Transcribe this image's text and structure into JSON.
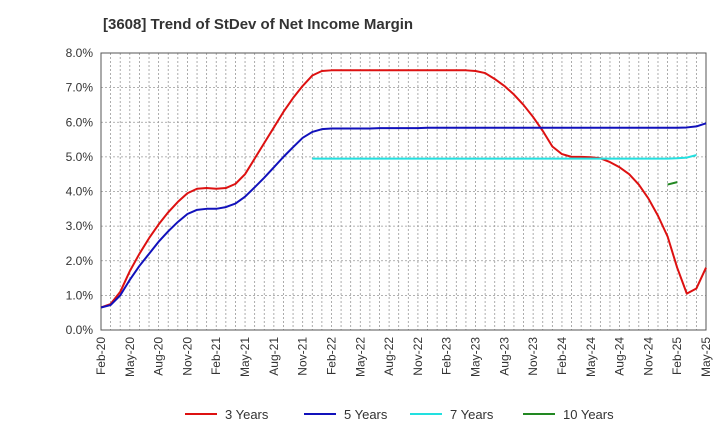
{
  "chart_data": {
    "type": "line",
    "title": "[3608]  Trend of StDev of Net Income Margin",
    "xlabel": "",
    "ylabel": "",
    "ylim": [
      0,
      8
    ],
    "yticks": [
      0,
      1,
      2,
      3,
      4,
      5,
      6,
      7,
      8
    ],
    "ytick_labels": [
      "0.0%",
      "1.0%",
      "2.0%",
      "3.0%",
      "4.0%",
      "5.0%",
      "6.0%",
      "7.0%",
      "8.0%"
    ],
    "x_start": "2020-02",
    "x_end": "2025-05",
    "xtick_labels": [
      "Feb-20",
      "May-20",
      "Aug-20",
      "Nov-20",
      "Feb-21",
      "May-21",
      "Aug-21",
      "Nov-21",
      "Feb-22",
      "May-22",
      "Aug-22",
      "Nov-22",
      "Feb-23",
      "May-23",
      "Aug-23",
      "Nov-23",
      "Feb-24",
      "May-24",
      "Aug-24",
      "Nov-24",
      "Feb-25",
      "May-25"
    ],
    "grid": true,
    "legend_position": "bottom",
    "series": [
      {
        "name": "3 Years",
        "color": "#dd1111",
        "start": "2020-02",
        "values": [
          0.65,
          0.75,
          1.1,
          1.7,
          2.2,
          2.65,
          3.05,
          3.4,
          3.7,
          3.95,
          4.08,
          4.1,
          4.08,
          4.1,
          4.22,
          4.5,
          4.95,
          5.4,
          5.85,
          6.3,
          6.7,
          7.05,
          7.35,
          7.48,
          7.5,
          7.5,
          7.5,
          7.5,
          7.5,
          7.5,
          7.5,
          7.5,
          7.5,
          7.5,
          7.5,
          7.5,
          7.5,
          7.5,
          7.5,
          7.48,
          7.42,
          7.25,
          7.05,
          6.8,
          6.5,
          6.15,
          5.75,
          5.3,
          5.08,
          5.0,
          5.0,
          4.99,
          4.96,
          4.85,
          4.7,
          4.5,
          4.2,
          3.8,
          3.3,
          2.7,
          1.8,
          1.05,
          1.2,
          1.8
        ]
      },
      {
        "name": "5 Years",
        "color": "#1111bb",
        "start": "2020-02",
        "values": [
          0.65,
          0.72,
          1.0,
          1.45,
          1.85,
          2.2,
          2.55,
          2.85,
          3.12,
          3.35,
          3.47,
          3.5,
          3.5,
          3.55,
          3.65,
          3.85,
          4.12,
          4.4,
          4.7,
          5.0,
          5.28,
          5.55,
          5.72,
          5.8,
          5.82,
          5.82,
          5.82,
          5.82,
          5.82,
          5.83,
          5.83,
          5.83,
          5.83,
          5.83,
          5.84,
          5.84,
          5.84,
          5.84,
          5.84,
          5.84,
          5.84,
          5.84,
          5.84,
          5.84,
          5.84,
          5.84,
          5.84,
          5.84,
          5.84,
          5.84,
          5.84,
          5.84,
          5.84,
          5.84,
          5.84,
          5.84,
          5.84,
          5.84,
          5.84,
          5.84,
          5.84,
          5.85,
          5.88,
          5.97
        ]
      },
      {
        "name": "7 Years",
        "color": "#22e0e0",
        "start": "2021-12",
        "values": [
          4.95,
          4.95,
          4.95,
          4.95,
          4.95,
          4.95,
          4.95,
          4.95,
          4.95,
          4.95,
          4.95,
          4.95,
          4.95,
          4.95,
          4.95,
          4.95,
          4.95,
          4.95,
          4.95,
          4.95,
          4.95,
          4.95,
          4.95,
          4.95,
          4.95,
          4.95,
          4.95,
          4.95,
          4.95,
          4.95,
          4.95,
          4.95,
          4.95,
          4.95,
          4.95,
          4.95,
          4.95,
          4.95,
          4.96,
          4.98,
          5.05
        ]
      },
      {
        "name": "10 Years",
        "color": "#228822",
        "start": "2025-01",
        "values": [
          4.2,
          4.27
        ]
      }
    ]
  }
}
